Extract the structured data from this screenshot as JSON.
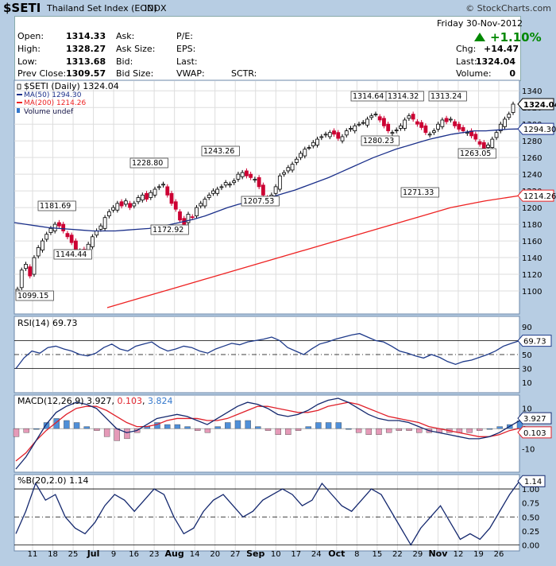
{
  "header": {
    "symbol": "$SETI",
    "name": "Thailand Set Index (EOD)",
    "exchange": "INDX",
    "copyright": "© StockCharts.com"
  },
  "quote": {
    "date": "Friday  30-Nov-2012",
    "change_pct": "+1.10%",
    "chg_label": "Chg:",
    "chg_value": "+14.47",
    "last_label": "Last:",
    "last_value": "1324.04",
    "volume_label": "Volume:",
    "volume_value": "0",
    "open_label": "Open:",
    "open": "1314.33",
    "high_label": "High:",
    "high": "1328.27",
    "low_label": "Low:",
    "low": "1313.68",
    "prevclose_label": "Prev Close:",
    "prevclose": "1309.57",
    "ask_label": "Ask:",
    "asksize_label": "Ask Size:",
    "bid_label": "Bid:",
    "bidsize_label": "Bid Size:",
    "pe_label": "P/E:",
    "eps_label": "EPS:",
    "lastq_label": "Last:",
    "vwap_label": "VWAP:",
    "sctr_label": "SCTR:"
  },
  "colors": {
    "up": "#ffffff",
    "down": "#cc0033",
    "ma50": "#1a2f8a",
    "ma200": "#ee2222",
    "panel": "#ffffff",
    "grid": "#dddddd"
  },
  "chart_data": [
    {
      "type": "candlestick",
      "legend": [
        "$SETI (Daily) 1324.04",
        "MA(50) 1294.30",
        "MA(200) 1214.26",
        "Volume undef"
      ],
      "ylim": [
        1080,
        1345
      ],
      "yticks": [
        1100,
        1120,
        1140,
        1160,
        1180,
        1200,
        1220,
        1240,
        1260,
        1280,
        1300,
        1320,
        1340
      ],
      "xticks": [
        "11",
        "18",
        "25",
        "Jul",
        "9",
        "16",
        "23",
        "Aug",
        "14",
        "20",
        "27",
        "Sep",
        "10",
        "17",
        "24",
        "Oct",
        "8",
        "15",
        "22",
        "29",
        "Nov",
        "12",
        "19",
        "26"
      ],
      "closes": [
        1102,
        1125,
        1132,
        1118,
        1140,
        1152,
        1160,
        1168,
        1175,
        1180,
        1178,
        1172,
        1165,
        1158,
        1150,
        1148,
        1145,
        1156,
        1165,
        1172,
        1178,
        1188,
        1195,
        1200,
        1205,
        1202,
        1208,
        1200,
        1205,
        1212,
        1215,
        1210,
        1218,
        1222,
        1225,
        1228,
        1215,
        1205,
        1198,
        1185,
        1180,
        1192,
        1188,
        1200,
        1205,
        1210,
        1215,
        1220,
        1222,
        1225,
        1230,
        1228,
        1232,
        1240,
        1242,
        1238,
        1236,
        1234,
        1225,
        1215,
        1208,
        1215,
        1225,
        1238,
        1242,
        1248,
        1252,
        1258,
        1265,
        1270,
        1272,
        1278,
        1282,
        1285,
        1288,
        1290,
        1288,
        1283,
        1285,
        1292,
        1295,
        1298,
        1300,
        1302,
        1306,
        1310,
        1312,
        1305,
        1298,
        1292,
        1290,
        1293,
        1298,
        1305,
        1310,
        1306,
        1300,
        1296,
        1290,
        1288,
        1292,
        1300,
        1305,
        1303,
        1306,
        1298,
        1294,
        1292,
        1290,
        1286,
        1282,
        1276,
        1270,
        1275,
        1282,
        1290,
        1300,
        1306,
        1312,
        1324.04
      ],
      "ma50": [
        1182,
        1180,
        1178,
        1176,
        1175,
        1174,
        1173,
        1172,
        1172,
        1172,
        1173,
        1174,
        1175,
        1177,
        1180,
        1183,
        1186,
        1190,
        1195,
        1200,
        1204,
        1207,
        1210,
        1213,
        1217,
        1221,
        1226,
        1231,
        1236,
        1242,
        1248,
        1254,
        1260,
        1265,
        1270,
        1274,
        1278,
        1282,
        1285,
        1288,
        1290,
        1292,
        1292,
        1293,
        1294,
        1294.3
      ],
      "ma200": [
        1080,
        1092,
        1104,
        1116,
        1128,
        1140,
        1152,
        1164,
        1176,
        1188,
        1200,
        1208,
        1214.26
      ],
      "annotations": [
        "1099.15",
        "1181.69",
        "1144.44",
        "1228.80",
        "1172.92",
        "1243.26",
        "1207.53",
        "1314.64",
        "1314.32",
        "1313.24",
        "1280.23",
        "1271.33",
        "1263.05"
      ],
      "value_tags": [
        "1324.04",
        "1294.30",
        "1214.26"
      ]
    },
    {
      "type": "line",
      "name": "RSI(14)",
      "label": "RSI(14) 69.73",
      "ylim": [
        0,
        100
      ],
      "yticks": [
        10,
        30,
        50,
        70,
        90
      ],
      "last": "69.73",
      "values": [
        30,
        45,
        55,
        52,
        60,
        62,
        58,
        55,
        50,
        48,
        52,
        60,
        65,
        58,
        55,
        62,
        65,
        68,
        60,
        55,
        58,
        62,
        60,
        55,
        52,
        58,
        62,
        66,
        64,
        68,
        70,
        72,
        75,
        70,
        60,
        55,
        50,
        58,
        65,
        68,
        72,
        75,
        78,
        80,
        75,
        70,
        68,
        62,
        55,
        52,
        48,
        45,
        50,
        46,
        40,
        36,
        40,
        42,
        46,
        50,
        55,
        62,
        66,
        69.73
      ]
    },
    {
      "type": "macd",
      "name": "MACD(12,26,9)",
      "label_prefix": "MACD(12,26,9)",
      "macd": "3.927",
      "signal": "0.103",
      "hist": "3.824",
      "ylim": [
        -20,
        15
      ],
      "yticks": [
        -10,
        0,
        10
      ],
      "value_tags": [
        "3.927",
        "0.103"
      ],
      "macd_values": [
        -20,
        -14,
        -6,
        2,
        8,
        11,
        13,
        12,
        10,
        5,
        0,
        -2,
        -1,
        2,
        5,
        6,
        7,
        6,
        4,
        2,
        5,
        8,
        11,
        13,
        12,
        10,
        7,
        6,
        7,
        9,
        12,
        14,
        15,
        13,
        10,
        7,
        5,
        4,
        4,
        3,
        1,
        -1,
        -2,
        -3,
        -4,
        -5,
        -5,
        -4,
        -2,
        1,
        3.927
      ],
      "signal_values": [
        -16,
        -12,
        -6,
        -1,
        3,
        7,
        10,
        11,
        11,
        9,
        6,
        3,
        1,
        1,
        2,
        4,
        5,
        5,
        5,
        4,
        4,
        5,
        7,
        9,
        11,
        11,
        10,
        9,
        8,
        8,
        9,
        11,
        12,
        13,
        12,
        10,
        8,
        6,
        5,
        4,
        3,
        1,
        0,
        -1,
        -2,
        -3,
        -4,
        -4,
        -3,
        -1,
        0.103
      ]
    },
    {
      "type": "line",
      "name": "%B(20,2.0)",
      "label": "%B(20,2.0) 1.14",
      "ylim": [
        -0.05,
        1.2
      ],
      "yticks": [
        0.0,
        0.25,
        0.5,
        0.75,
        1.0
      ],
      "last": "1.14",
      "values": [
        0.2,
        0.6,
        1.1,
        0.8,
        0.9,
        0.5,
        0.3,
        0.2,
        0.4,
        0.7,
        0.9,
        0.8,
        0.6,
        0.8,
        1.0,
        0.9,
        0.5,
        0.2,
        0.3,
        0.6,
        0.8,
        0.9,
        0.7,
        0.5,
        0.6,
        0.8,
        0.9,
        1.0,
        0.9,
        0.7,
        0.8,
        1.1,
        0.9,
        0.7,
        0.6,
        0.8,
        1.0,
        0.9,
        0.6,
        0.3,
        0.0,
        0.3,
        0.5,
        0.7,
        0.4,
        0.1,
        0.2,
        0.1,
        0.3,
        0.6,
        0.9,
        1.14
      ]
    }
  ]
}
